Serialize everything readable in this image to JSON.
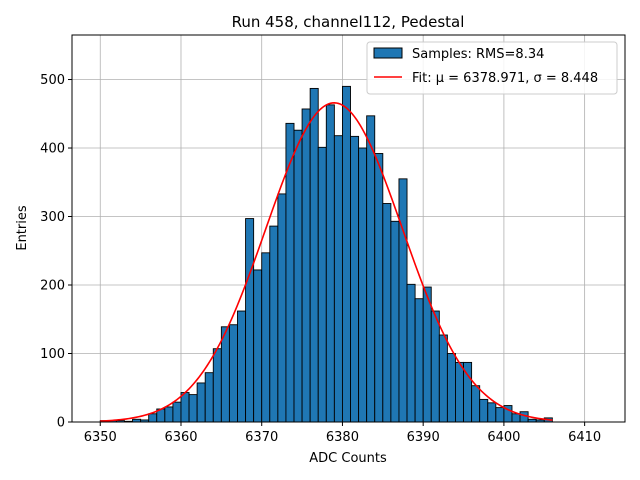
{
  "chart_data": {
    "type": "bar",
    "title": "Run 458, channel112, Pedestal",
    "xlabel": "ADC Counts",
    "ylabel": "Entries",
    "xlim": [
      6346.5,
      6415
    ],
    "ylim": [
      0,
      565
    ],
    "xticks": [
      6350,
      6360,
      6370,
      6380,
      6390,
      6400,
      6410
    ],
    "yticks": [
      0,
      100,
      200,
      300,
      400,
      500
    ],
    "grid": true,
    "legend_position": "top-right",
    "colors": {
      "bars": "#1f77b4",
      "bar_edge": "#000000",
      "fit": "#ff0000",
      "grid": "#b0b0b0"
    },
    "histogram": {
      "name": "Samples: RMS=8.34",
      "bin_start": 6350,
      "bin_width": 1,
      "values": [
        2,
        2,
        2,
        1,
        4,
        3,
        12,
        19,
        22,
        29,
        43,
        40,
        57,
        72,
        107,
        139,
        142,
        162,
        297,
        222,
        247,
        286,
        333,
        436,
        426,
        457,
        487,
        401,
        463,
        418,
        490,
        417,
        400,
        447,
        392,
        319,
        293,
        355,
        201,
        180,
        197,
        162,
        127,
        100,
        87,
        87,
        53,
        33,
        28,
        21,
        24,
        12,
        15,
        4,
        3,
        6
      ]
    },
    "fit": {
      "name": "Fit: μ = 6378.971, σ = 8.448",
      "mu": 6378.971,
      "sigma": 8.448,
      "amplitude": 466,
      "x_range": [
        6350,
        6406
      ]
    }
  }
}
